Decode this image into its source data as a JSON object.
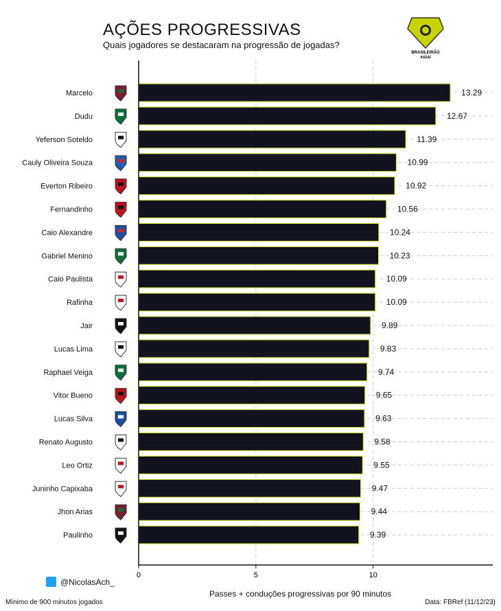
{
  "title": "AÇÕES PROGRESSIVAS",
  "subtitle": "Quais jogadores se destacaram na progressão de jogadas?",
  "logo_text": [
    "BRASILEIRÃO",
    "ASSAÍ"
  ],
  "footer": {
    "handle": "@NicolasAch_",
    "minimum": "Mínimo de 900 minutos jogados",
    "source": "Data: FBRef (11/12/23)"
  },
  "colors": {
    "bar_fill": "#13131f",
    "bar_border": "#d4e34a",
    "grid": "#cccccc",
    "logo": "#c8d400"
  },
  "chart_data": {
    "type": "bar",
    "orientation": "horizontal",
    "title": "AÇÕES PROGRESSIVAS",
    "xlabel": "Passes + conduções progressivas por 90 minutos",
    "ylabel": "",
    "xlim": [
      0,
      15.1
    ],
    "xticks": [
      0,
      5,
      10
    ],
    "grid": true,
    "categories": [
      "Marcelo",
      "Dudu",
      "Yeferson Soteldo",
      "Cauly Oliveira Souza",
      "Everton Ribeiro",
      "Fernandinho",
      "Caio Alexandre",
      "Gabriel Menino",
      "Caio Paulista",
      "Rafinha",
      "Jair",
      "Lucas Lima",
      "Raphael Veiga",
      "Vitor Bueno",
      "Lucas Silva",
      "Renato Augusto",
      "Leo Ortiz",
      "Juninho Capixaba",
      "Jhon Arias",
      "Paulinho"
    ],
    "values": [
      13.29,
      12.67,
      11.39,
      10.99,
      10.92,
      10.56,
      10.24,
      10.23,
      10.09,
      10.09,
      9.89,
      9.83,
      9.74,
      9.65,
      9.63,
      9.58,
      9.55,
      9.47,
      9.44,
      9.39
    ],
    "value_labels": [
      "13.29",
      "12.67",
      "11.39",
      "10.99",
      "10.92",
      "10.56",
      "10.24",
      "10.23",
      "10.09",
      "10.09",
      "9.89",
      "9.83",
      "9.74",
      "9.65",
      "9.63",
      "9.58",
      "9.55",
      "9.47",
      "9.44",
      "9.39"
    ],
    "clubs": [
      "fluminense",
      "palmeiras",
      "santos",
      "bahia",
      "flamengo",
      "athletico",
      "fortaleza",
      "palmeiras",
      "sao-paulo",
      "sao-paulo",
      "vasco",
      "santos",
      "palmeiras",
      "athletico",
      "cruzeiro",
      "corinthians",
      "bragantino",
      "bragantino",
      "fluminense",
      "vasco"
    ]
  }
}
